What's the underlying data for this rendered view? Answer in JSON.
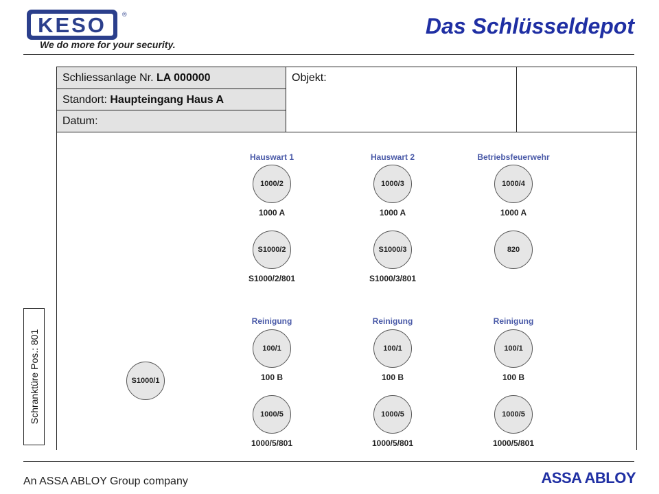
{
  "header": {
    "logo_text": "KESO",
    "logo_mark": "®",
    "tagline": "We do more for your security.",
    "title": "Das Schlüsseldepot"
  },
  "info": {
    "anlage_label": "Schliessanlage Nr. ",
    "anlage_value": "LA 000000",
    "standort_label": "Standort: ",
    "standort_value": "Haupteingang Haus A",
    "datum_label": "Datum:",
    "objekt_label": "Objekt:"
  },
  "side_label": "Schranktüre Pos.: 801",
  "groups": [
    {
      "label": "Hauswart 1",
      "key1": "1000/2",
      "key1_label": "1000 A",
      "key2": "S1000/2",
      "key2_label": "S1000/2/801"
    },
    {
      "label": "Hauswart 2",
      "key1": "1000/3",
      "key1_label": "1000 A",
      "key2": "S1000/3",
      "key2_label": "S1000/3/801"
    },
    {
      "label": "Betriebsfeuerwehr",
      "key1": "1000/4",
      "key1_label": "1000 A",
      "key2": "820",
      "key2_label": ""
    },
    {
      "label": "Reinigung",
      "key1": "100/1",
      "key1_label": "100 B",
      "key2": "1000/5",
      "key2_label": "1000/5/801"
    },
    {
      "label": "Reinigung",
      "key1": "100/1",
      "key1_label": "100 B",
      "key2": "1000/5",
      "key2_label": "1000/5/801"
    },
    {
      "label": "Reinigung",
      "key1": "100/1",
      "key1_label": "100 B",
      "key2": "1000/5",
      "key2_label": "1000/5/801"
    }
  ],
  "standalone_key": "S1000/1",
  "footer": {
    "left": "An ASSA ABLOY Group company",
    "right": "ASSA ABLOY"
  },
  "colors": {
    "brand_blue": "#1f2fa3",
    "label_blue": "#4a5aa8",
    "key_fill": "#e6e6e6",
    "cell_shade": "#e3e3e3"
  }
}
